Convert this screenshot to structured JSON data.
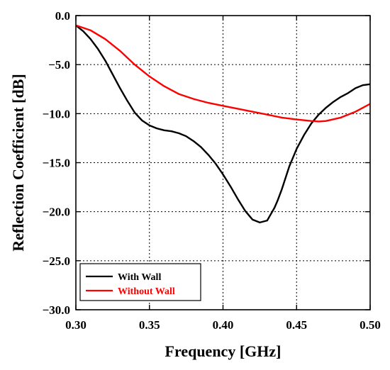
{
  "chart_data": {
    "type": "line",
    "title": "",
    "xlabel": "Frequency [GHz]",
    "ylabel": "Reflection Coefficient [dB]",
    "xlim": [
      0.3,
      0.5
    ],
    "ylim": [
      -30.0,
      0.0
    ],
    "xticks": [
      "0.30",
      "0.35",
      "0.40",
      "0.45",
      "0.50"
    ],
    "yticks": [
      "0.0",
      "−5.0",
      "−10.0",
      "−15.0",
      "−20.0",
      "−25.0",
      "−30.0"
    ],
    "grid": true,
    "legend_position": "bottom-left",
    "series": [
      {
        "name": "With Wall",
        "color": "#000000",
        "x": [
          0.3,
          0.305,
          0.31,
          0.315,
          0.32,
          0.325,
          0.33,
          0.335,
          0.34,
          0.345,
          0.35,
          0.355,
          0.36,
          0.365,
          0.37,
          0.375,
          0.38,
          0.385,
          0.39,
          0.395,
          0.4,
          0.405,
          0.41,
          0.415,
          0.42,
          0.425,
          0.43,
          0.435,
          0.437,
          0.44,
          0.445,
          0.45,
          0.455,
          0.46,
          0.465,
          0.47,
          0.475,
          0.48,
          0.485,
          0.49,
          0.495,
          0.5
        ],
        "y": [
          -1.0,
          -1.6,
          -2.4,
          -3.4,
          -4.6,
          -6.0,
          -7.4,
          -8.7,
          -9.9,
          -10.7,
          -11.2,
          -11.5,
          -11.7,
          -11.8,
          -12.0,
          -12.3,
          -12.8,
          -13.4,
          -14.2,
          -15.1,
          -16.2,
          -17.4,
          -18.7,
          -19.9,
          -20.8,
          -21.1,
          -20.9,
          -19.6,
          -18.9,
          -17.7,
          -15.4,
          -13.6,
          -12.2,
          -11.0,
          -10.1,
          -9.4,
          -8.8,
          -8.3,
          -7.9,
          -7.4,
          -7.1,
          -7.0
        ]
      },
      {
        "name": "Without Wall",
        "color": "#ff0000",
        "x": [
          0.3,
          0.31,
          0.32,
          0.33,
          0.34,
          0.35,
          0.36,
          0.37,
          0.38,
          0.39,
          0.4,
          0.41,
          0.42,
          0.43,
          0.44,
          0.45,
          0.46,
          0.465,
          0.47,
          0.48,
          0.49,
          0.5
        ],
        "y": [
          -1.0,
          -1.5,
          -2.4,
          -3.6,
          -5.0,
          -6.2,
          -7.2,
          -8.0,
          -8.5,
          -8.9,
          -9.2,
          -9.5,
          -9.8,
          -10.1,
          -10.4,
          -10.6,
          -10.75,
          -10.8,
          -10.75,
          -10.4,
          -9.8,
          -9.0
        ]
      }
    ]
  }
}
